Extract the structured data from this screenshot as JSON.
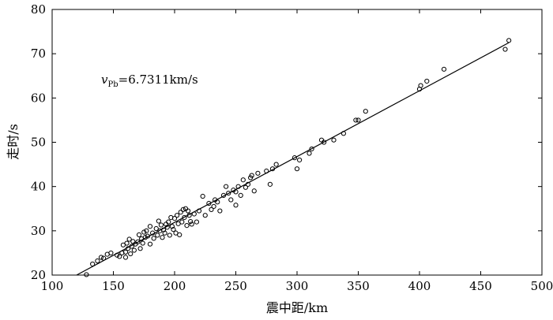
{
  "chart_data": {
    "type": "scatter",
    "xlabel": "震中距/km",
    "ylabel": "走时/s",
    "xlim": [
      100,
      500
    ],
    "ylim": [
      20,
      80
    ],
    "xticks": [
      100,
      150,
      200,
      250,
      300,
      350,
      400,
      450,
      500
    ],
    "yticks": [
      20,
      30,
      40,
      50,
      60,
      70,
      80
    ],
    "grid": false,
    "annotation": {
      "symbol": "v",
      "subscript": "Pb",
      "text": "=6.7311km/s"
    },
    "fit_line": {
      "points": [
        [
          120,
          20.0
        ],
        [
          473,
          72.5
        ]
      ]
    },
    "points": [
      [
        128,
        20.1
      ],
      [
        133,
        22.5
      ],
      [
        137,
        23.2
      ],
      [
        140,
        24.0
      ],
      [
        142,
        23.8
      ],
      [
        145,
        24.7
      ],
      [
        148,
        25.0
      ],
      [
        153,
        24.5
      ],
      [
        155,
        24.2
      ],
      [
        157,
        25.0
      ],
      [
        158,
        26.8
      ],
      [
        160,
        24.0
      ],
      [
        160,
        25.2
      ],
      [
        161,
        27.2
      ],
      [
        162,
        26.0
      ],
      [
        163,
        28.1
      ],
      [
        164,
        24.8
      ],
      [
        165,
        26.5
      ],
      [
        166,
        27.6
      ],
      [
        167,
        25.6
      ],
      [
        168,
        27.0
      ],
      [
        170,
        27.5
      ],
      [
        171,
        29.1
      ],
      [
        172,
        26.0
      ],
      [
        173,
        28.2
      ],
      [
        174,
        27.2
      ],
      [
        175,
        29.7
      ],
      [
        176,
        28.5
      ],
      [
        177,
        30.0
      ],
      [
        178,
        28.8
      ],
      [
        180,
        27.0
      ],
      [
        180,
        31.0
      ],
      [
        182,
        29.5
      ],
      [
        183,
        28.3
      ],
      [
        185,
        30.5
      ],
      [
        186,
        29.0
      ],
      [
        187,
        32.2
      ],
      [
        188,
        30.0
      ],
      [
        189,
        31.3
      ],
      [
        190,
        28.5
      ],
      [
        191,
        30.2
      ],
      [
        192,
        29.5
      ],
      [
        193,
        31.5
      ],
      [
        194,
        30.8
      ],
      [
        195,
        32.0
      ],
      [
        196,
        29.0
      ],
      [
        197,
        33.0
      ],
      [
        198,
        31.0
      ],
      [
        199,
        30.3
      ],
      [
        200,
        32.8
      ],
      [
        201,
        29.5
      ],
      [
        202,
        33.5
      ],
      [
        203,
        31.6
      ],
      [
        204,
        29.1
      ],
      [
        205,
        34.2
      ],
      [
        206,
        32.0
      ],
      [
        207,
        34.8
      ],
      [
        208,
        33.0
      ],
      [
        209,
        35.0
      ],
      [
        210,
        31.2
      ],
      [
        211,
        34.5
      ],
      [
        212,
        33.5
      ],
      [
        213,
        32.1
      ],
      [
        214,
        31.5
      ],
      [
        216,
        33.8
      ],
      [
        218,
        32.0
      ],
      [
        220,
        34.5
      ],
      [
        223,
        37.8
      ],
      [
        225,
        33.5
      ],
      [
        228,
        36.2
      ],
      [
        230,
        34.8
      ],
      [
        232,
        35.5
      ],
      [
        233,
        37.0
      ],
      [
        235,
        36.5
      ],
      [
        237,
        34.5
      ],
      [
        240,
        38.0
      ],
      [
        242,
        40.0
      ],
      [
        244,
        38.5
      ],
      [
        246,
        37.0
      ],
      [
        248,
        39.2
      ],
      [
        250,
        38.8
      ],
      [
        250,
        35.8
      ],
      [
        252,
        40.0
      ],
      [
        254,
        38.0
      ],
      [
        256,
        41.5
      ],
      [
        258,
        39.8
      ],
      [
        260,
        40.5
      ],
      [
        262,
        42.0
      ],
      [
        263,
        42.5
      ],
      [
        265,
        39.0
      ],
      [
        268,
        43.0
      ],
      [
        275,
        43.5
      ],
      [
        278,
        40.5
      ],
      [
        280,
        44.0
      ],
      [
        283,
        45.0
      ],
      [
        298,
        46.5
      ],
      [
        300,
        44.0
      ],
      [
        302,
        46.0
      ],
      [
        310,
        47.5
      ],
      [
        312,
        48.5
      ],
      [
        320,
        50.5
      ],
      [
        322,
        50.0
      ],
      [
        330,
        50.5
      ],
      [
        338,
        52.0
      ],
      [
        348,
        55.0
      ],
      [
        350,
        55.0
      ],
      [
        356,
        57.0
      ],
      [
        400,
        62.0
      ],
      [
        401,
        62.8
      ],
      [
        406,
        63.8
      ],
      [
        420,
        66.5
      ],
      [
        470,
        71.0
      ],
      [
        473,
        73.0
      ]
    ]
  }
}
